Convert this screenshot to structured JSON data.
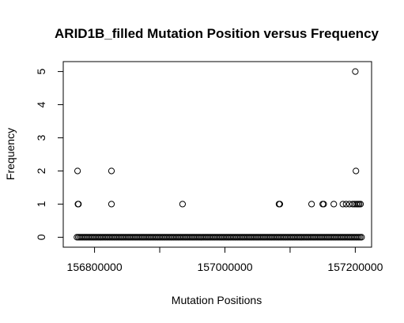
{
  "chart_data": {
    "type": "scatter",
    "title": "ARID1B_filled Mutation Position versus Frequency",
    "xlabel": "Mutation Positions",
    "ylabel": "Frequency",
    "xlim": [
      156752000,
      157225000
    ],
    "ylim": [
      -0.3,
      5.3
    ],
    "xticks": [
      156800000,
      157000000,
      157200000
    ],
    "xtick_labels": [
      "156800000",
      "157000000",
      "157200000"
    ],
    "yticks": [
      0,
      1,
      2,
      3,
      4,
      5
    ],
    "ytick_labels": [
      "0",
      "1",
      "2",
      "3",
      "4",
      "5"
    ],
    "marker": "open-circle",
    "grid": false,
    "series": [
      {
        "points": [
          {
            "x": 156774000,
            "y": 2
          },
          {
            "x": 156774500,
            "y": 1
          },
          {
            "x": 156775300,
            "y": 1
          },
          {
            "x": 156826000,
            "y": 2
          },
          {
            "x": 156826000,
            "y": 1
          },
          {
            "x": 156935000,
            "y": 1
          },
          {
            "x": 157083000,
            "y": 1
          },
          {
            "x": 157084200,
            "y": 1
          },
          {
            "x": 157133000,
            "y": 1
          },
          {
            "x": 157150000,
            "y": 1
          },
          {
            "x": 157151500,
            "y": 1
          },
          {
            "x": 157167000,
            "y": 1
          },
          {
            "x": 157181000,
            "y": 1
          },
          {
            "x": 157186000,
            "y": 1
          },
          {
            "x": 157191000,
            "y": 1
          },
          {
            "x": 157196000,
            "y": 1
          },
          {
            "x": 157199000,
            "y": 1
          },
          {
            "x": 157200000,
            "y": 5
          },
          {
            "x": 157201000,
            "y": 2
          },
          {
            "x": 157202000,
            "y": 1
          },
          {
            "x": 157204000,
            "y": 1
          },
          {
            "x": 157206000,
            "y": 1
          },
          {
            "x": 157208000,
            "y": 1
          }
        ],
        "zero_band": {
          "x_start": 156773000,
          "x_end": 157210000,
          "y": 0
        }
      }
    ]
  }
}
